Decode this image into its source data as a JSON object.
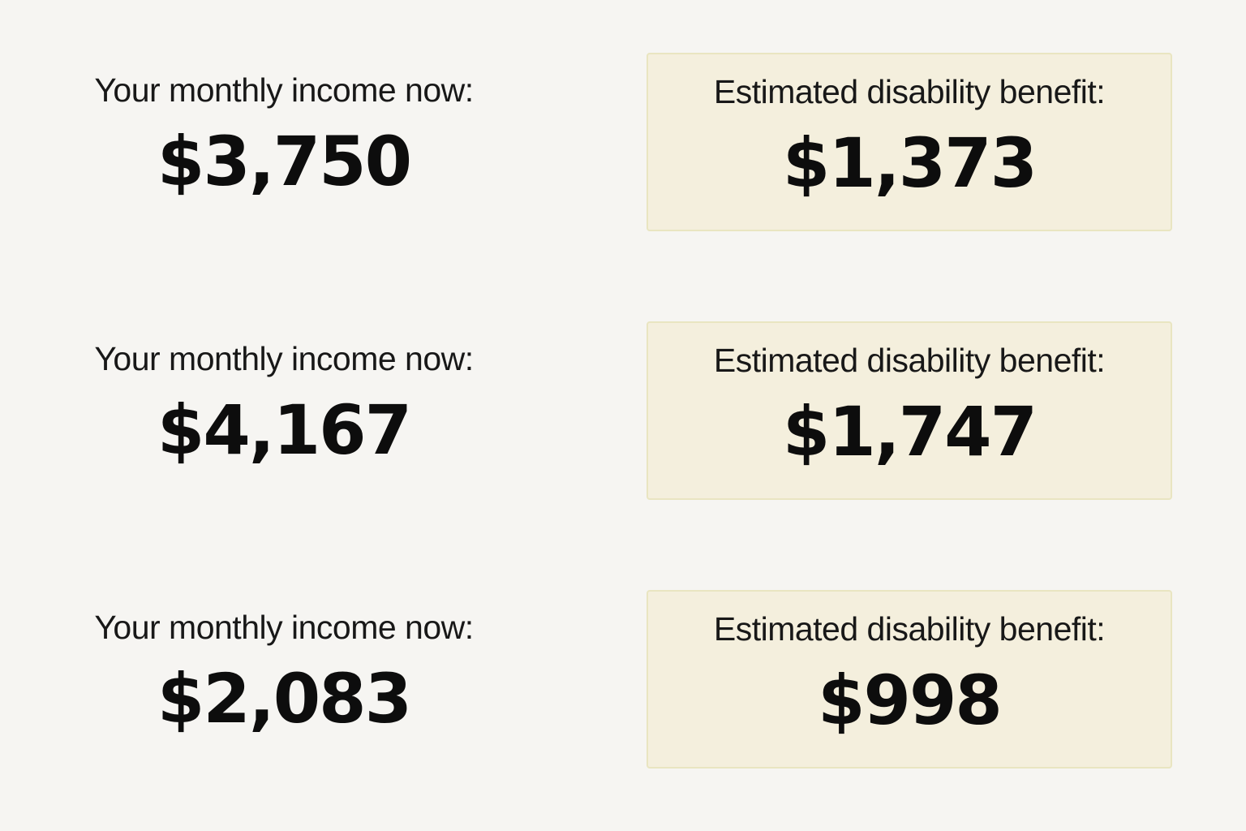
{
  "colors": {
    "page_bg": "#f6f5f2",
    "box_fill": "#f4efdd",
    "box_border": "#e9e5c1",
    "label_color": "#181818",
    "value_color": "#0d0d0d"
  },
  "rows": [
    {
      "income_label": "Your monthly income now:",
      "income_value": "$3,750",
      "benefit_label": "Estimated disability benefit:",
      "benefit_value": "$1,373"
    },
    {
      "income_label": "Your monthly income now:",
      "income_value": "$4,167",
      "benefit_label": "Estimated disability benefit:",
      "benefit_value": "$1,747"
    },
    {
      "income_label": "Your monthly income now:",
      "income_value": "$2,083",
      "benefit_label": "Estimated disability benefit:",
      "benefit_value": "$998"
    }
  ],
  "chart_data": {
    "type": "table",
    "columns": [
      "Your monthly income now:",
      "Estimated disability benefit:"
    ],
    "rows": [
      [
        "$3,750",
        "$1,373"
      ],
      [
        "$4,167",
        "$1,747"
      ],
      [
        "$2,083",
        "$998"
      ]
    ],
    "title": "",
    "layout": "three stacked comparison rows; benefit values highlighted in cream callout boxes on the right"
  }
}
